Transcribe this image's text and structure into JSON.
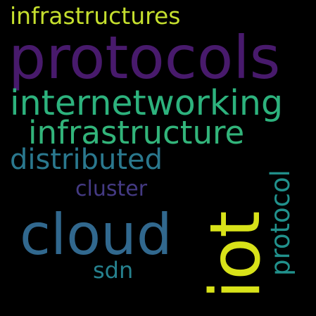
{
  "words": {
    "infrastructures": {
      "text": "infrastructures",
      "color": "#c5df2e"
    },
    "protocols": {
      "text": "protocols",
      "color": "#481a6c"
    },
    "internetworking": {
      "text": "internetworking",
      "color": "#2db27d"
    },
    "infrastructure": {
      "text": "infrastructure",
      "color": "#32b47a"
    },
    "distributed": {
      "text": "distributed",
      "color": "#2a788e"
    },
    "cluster": {
      "text": "cluster",
      "color": "#443a83"
    },
    "cloud": {
      "text": "cloud",
      "color": "#31688e"
    },
    "sdn": {
      "text": "sdn",
      "color": "#26818e"
    },
    "iot": {
      "text": "iot",
      "color": "#d8e219"
    },
    "protocol": {
      "text": "protocol",
      "color": "#21918c"
    }
  }
}
